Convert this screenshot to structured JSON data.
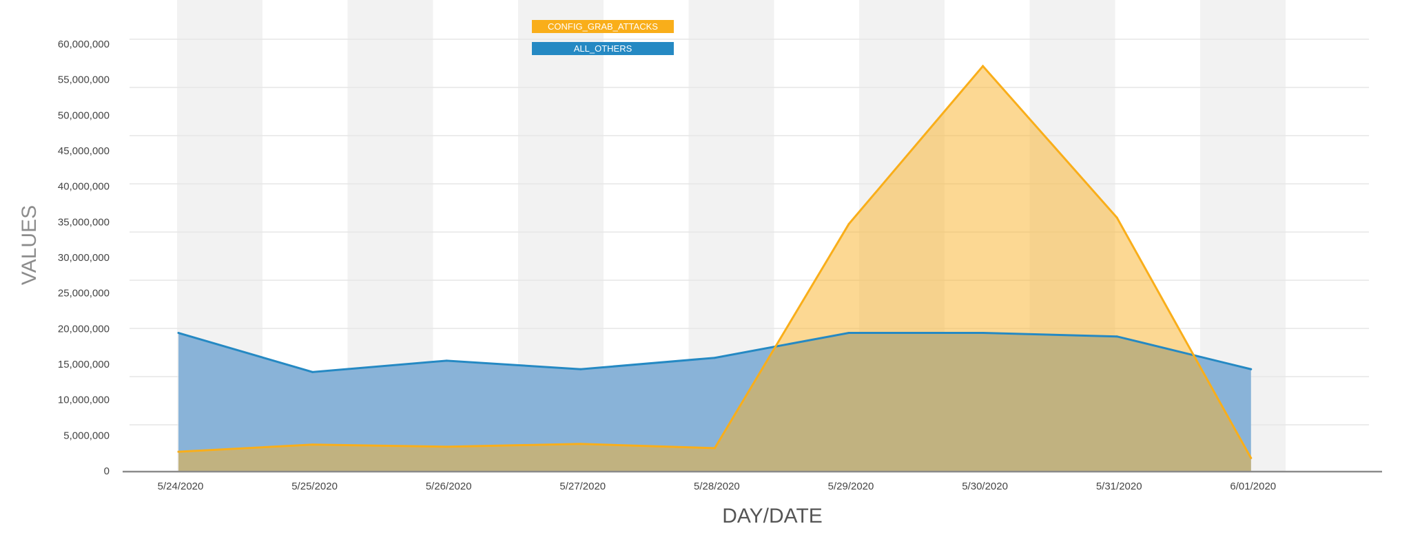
{
  "chart_data": {
    "type": "area",
    "title": "",
    "xlabel": "DAY/DATE",
    "ylabel": "VALUES",
    "categories": [
      "5/24/2020",
      "5/25/2020",
      "5/26/2020",
      "5/27/2020",
      "5/28/2020",
      "5/29/2020",
      "5/30/2020",
      "5/31/2020",
      "6/01/2020"
    ],
    "ylim": [
      0,
      60000000
    ],
    "yticks": [
      "0",
      "5,000,000",
      "10,000,000",
      "15,000,000",
      "20,000,000",
      "25,000,000",
      "30,000,000",
      "35,000,000",
      "40,000,000",
      "45,000,000",
      "50,000,000",
      "55,000,000",
      "60,000,000"
    ],
    "grid": true,
    "legend": "top-center",
    "series": [
      {
        "name": "CONFIG_GRAB_ATTACKS",
        "color": "#F9AE1A",
        "values": [
          2700000,
          3700000,
          3400000,
          3800000,
          3200000,
          34700000,
          56900000,
          35600000,
          1800000
        ]
      },
      {
        "name": "ALL_OTHERS",
        "color": "#2589C3",
        "values": [
          19400000,
          13900000,
          15500000,
          14300000,
          15900000,
          19400000,
          19400000,
          18900000,
          14300000
        ]
      }
    ]
  }
}
